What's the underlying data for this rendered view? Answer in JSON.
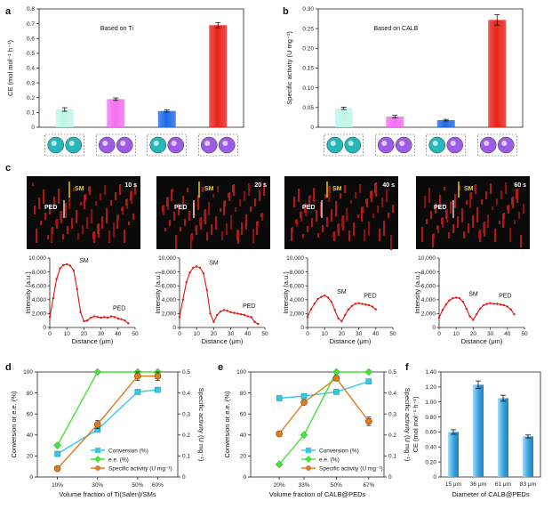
{
  "panels": {
    "a": "a",
    "b": "b",
    "c": "c",
    "d": "d",
    "e": "e",
    "f": "f"
  },
  "chart_data": [
    {
      "id": "a",
      "type": "bar",
      "annotation": "Based on Ti",
      "ylabel": "CE (mol mol⁻¹ h⁻¹)",
      "ylim": [
        0,
        0.8
      ],
      "yticks": [
        "0",
        "0.1",
        "0.2",
        "0.3",
        "0.4",
        "0.5",
        "0.6",
        "0.7",
        "0.8"
      ],
      "values": [
        0.12,
        0.19,
        0.11,
        0.69
      ],
      "errors": [
        0.012,
        0.008,
        0.007,
        0.018
      ],
      "colors": [
        "#bff5ea",
        "#f36ff0",
        "#1f68e6",
        "#e8231c"
      ],
      "icons": [
        [
          "#27b7ba",
          "#27b7ba"
        ],
        [
          "#9c5ce8",
          "#9c5ce8"
        ],
        [
          "#27b7ba",
          "#9c5ce8"
        ],
        [
          "#9c5ce8",
          "#9c5ce8"
        ]
      ]
    },
    {
      "id": "b",
      "type": "bar",
      "annotation": "Based on CALB",
      "ylabel": "Specific activity (U mg⁻¹)",
      "ylim": [
        0,
        0.3
      ],
      "yticks": [
        "0",
        "0.05",
        "0.10",
        "0.15",
        "0.20",
        "0.25",
        "0.30"
      ],
      "values": [
        0.048,
        0.027,
        0.018,
        0.272
      ],
      "errors": [
        0.003,
        0.003,
        0.002,
        0.013
      ],
      "colors": [
        "#bff5ea",
        "#f36ff0",
        "#1f68e6",
        "#e8231c"
      ],
      "icons": [
        [
          "#27b7ba",
          "#27b7ba"
        ],
        [
          "#9c5ce8",
          "#9c5ce8"
        ],
        [
          "#27b7ba",
          "#9c5ce8"
        ],
        [
          "#9c5ce8",
          "#9c5ce8"
        ]
      ]
    },
    {
      "id": "c",
      "type": "line",
      "xlabel": "Distance (μm)",
      "ylabel": "Intensity (a.u.)",
      "ylim": [
        0,
        10000
      ],
      "yticks": [
        "0",
        "2,000",
        "4,000",
        "6,000",
        "8,000",
        "10,000"
      ],
      "heatmap_labels": {
        "sm": "SM",
        "ped": "PED"
      },
      "panels": [
        {
          "time": "10 s",
          "xlim": [
            0,
            50
          ],
          "xticks": [
            "0",
            "10",
            "20",
            "30",
            "40",
            "50"
          ],
          "x": [
            0,
            2,
            4,
            6,
            8,
            10,
            12,
            14,
            16,
            18,
            20,
            22,
            24,
            26,
            28,
            30,
            32,
            34,
            36,
            38,
            40,
            42,
            44,
            46
          ],
          "y": [
            1500,
            4200,
            7000,
            8500,
            9000,
            9100,
            8900,
            8200,
            5500,
            2200,
            900,
            1000,
            1400,
            1600,
            1500,
            1400,
            1500,
            1400,
            1600,
            1500,
            1300,
            1200,
            1000,
            600
          ],
          "sm_label": "SM",
          "ped_label": "PED"
        },
        {
          "time": "20 s",
          "xlim": [
            0,
            50
          ],
          "xticks": [
            "0",
            "10",
            "20",
            "30",
            "40",
            "50"
          ],
          "x": [
            0,
            2,
            4,
            6,
            8,
            10,
            12,
            14,
            16,
            18,
            20,
            22,
            24,
            26,
            28,
            30,
            32,
            34,
            36,
            38,
            40,
            42,
            44,
            46
          ],
          "y": [
            1500,
            4000,
            6500,
            7900,
            8600,
            8800,
            8600,
            7800,
            5400,
            2000,
            800,
            1800,
            2300,
            2500,
            2400,
            2200,
            2100,
            2000,
            1900,
            1800,
            1600,
            1500,
            800,
            500
          ],
          "sm_label": "SM",
          "ped_label": "PED"
        },
        {
          "time": "40 s",
          "xlim": [
            0,
            50
          ],
          "xticks": [
            "0",
            "10",
            "20",
            "30",
            "40",
            "50"
          ],
          "x": [
            0,
            2,
            4,
            6,
            8,
            10,
            12,
            14,
            16,
            18,
            20,
            22,
            24,
            26,
            28,
            30,
            32,
            34,
            36,
            38,
            40
          ],
          "y": [
            1500,
            2600,
            3400,
            4100,
            4400,
            4600,
            4300,
            3700,
            2500,
            1300,
            900,
            1800,
            2600,
            3100,
            3400,
            3500,
            3400,
            3300,
            3200,
            3000,
            2600
          ],
          "sm_label": "SM",
          "ped_label": "PED"
        },
        {
          "time": "60 s",
          "xlim": [
            0,
            50
          ],
          "xticks": [
            "0",
            "10",
            "20",
            "30",
            "40",
            "50"
          ],
          "x": [
            0,
            2,
            4,
            6,
            8,
            10,
            12,
            14,
            16,
            18,
            20,
            22,
            24,
            26,
            28,
            30,
            32,
            34,
            36,
            38,
            40,
            42,
            44
          ],
          "y": [
            1400,
            2500,
            3300,
            3900,
            4200,
            4300,
            4200,
            3700,
            2700,
            1600,
            1100,
            1900,
            2700,
            3200,
            3400,
            3500,
            3400,
            3400,
            3300,
            3200,
            3000,
            2600,
            1900
          ],
          "sm_label": "SM",
          "ped_label": "PED"
        }
      ]
    },
    {
      "id": "d",
      "type": "line",
      "xlabel": "Volume fraction of Ti(Salen)/SMs",
      "ylabel": "Conversion or e.e. (%)",
      "y2label": "Specific activity (U mg⁻¹)",
      "ylim": [
        0,
        100
      ],
      "y2lim": [
        0,
        0.5
      ],
      "categories": [
        "10%",
        "30%",
        "50%",
        "60%"
      ],
      "x": [
        10,
        30,
        50,
        60
      ],
      "xlim": [
        0,
        70
      ],
      "yticks": [
        "0",
        "20",
        "40",
        "60",
        "80",
        "100"
      ],
      "y2ticks": [
        "0",
        "0.1",
        "0.2",
        "0.3",
        "0.4",
        "0.5"
      ],
      "series": [
        {
          "name": "Conversion (%)",
          "axis": "left",
          "color": "#35c9e8",
          "marker": "square",
          "values": [
            22,
            45,
            81,
            83
          ]
        },
        {
          "name": "e.e. (%)",
          "axis": "left",
          "color": "#48e23a",
          "marker": "diamond",
          "values": [
            30,
            100,
            100,
            100
          ]
        },
        {
          "name": "Specific activity (U mg⁻¹)",
          "axis": "right",
          "color": "#e07b1f",
          "marker": "circle",
          "values": [
            0.04,
            0.25,
            0.48,
            0.48
          ],
          "errors": [
            0.01,
            0.02,
            0.02,
            0.02
          ]
        }
      ]
    },
    {
      "id": "e",
      "type": "line",
      "xlabel": "Volume fraction of CALB@PEDs",
      "ylabel": "Conversion or e.e. (%)",
      "y2label": "Specific activity (U mg⁻¹)",
      "ylim": [
        0,
        100
      ],
      "y2lim": [
        0,
        0.5
      ],
      "categories": [
        "20%",
        "33%",
        "50%",
        "67%"
      ],
      "x": [
        20,
        33,
        50,
        67
      ],
      "xlim": [
        5,
        75
      ],
      "yticks": [
        "0",
        "20",
        "40",
        "60",
        "80",
        "100"
      ],
      "y2ticks": [
        "0",
        "0.1",
        "0.2",
        "0.3",
        "0.4",
        "0.5"
      ],
      "series": [
        {
          "name": "Conversion (%)",
          "axis": "left",
          "color": "#35c9e8",
          "marker": "square",
          "values": [
            75,
            77,
            81,
            91
          ]
        },
        {
          "name": "e.e. (%)",
          "axis": "left",
          "color": "#48e23a",
          "marker": "diamond",
          "values": [
            12,
            40,
            100,
            100
          ]
        },
        {
          "name": "Specific activity (U mg⁻¹)",
          "axis": "right",
          "color": "#e07b1f",
          "marker": "circle",
          "values": [
            0.205,
            0.355,
            0.47,
            0.265
          ],
          "errors": [
            0.01,
            0.01,
            0.01,
            0.02
          ]
        }
      ]
    },
    {
      "id": "f",
      "type": "bar",
      "xlabel": "Diameter of CALB@PEDs",
      "ylabel": "CE (mol mol⁻¹ h⁻¹)",
      "ylim": [
        0,
        1.4
      ],
      "yticks": [
        "0",
        "0.20",
        "0.40",
        "0.60",
        "0.80",
        "1.00",
        "1.20",
        "1.40"
      ],
      "categories": [
        "15 μm",
        "36 μm",
        "61 μm",
        "83 μm"
      ],
      "values": [
        0.6,
        1.23,
        1.05,
        0.54
      ],
      "errors": [
        0.03,
        0.05,
        0.04,
        0.02
      ],
      "color": "#3aa6e0"
    }
  ]
}
